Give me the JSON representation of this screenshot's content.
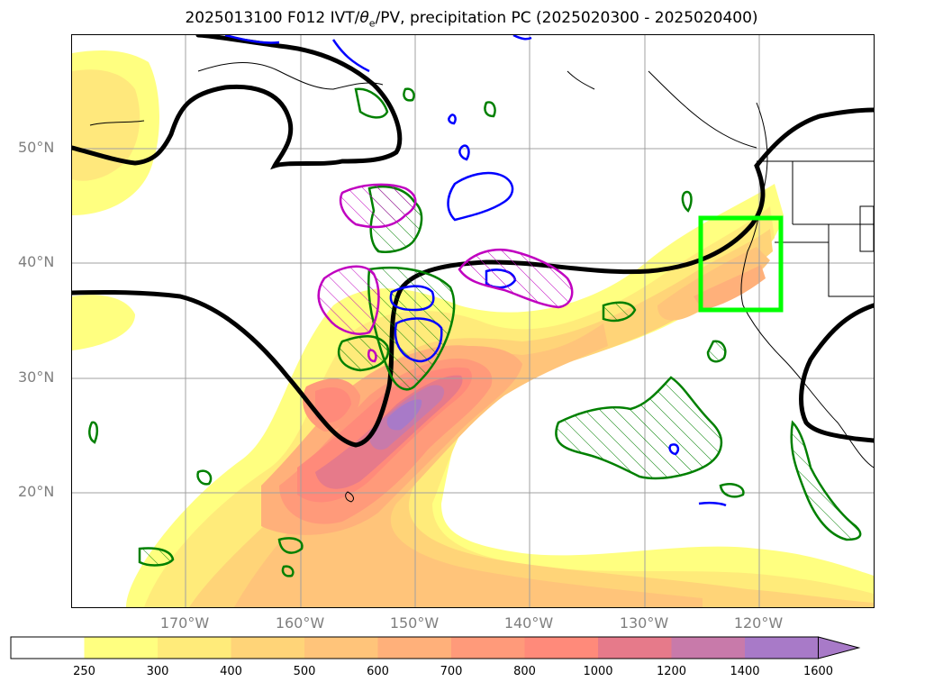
{
  "title_main": "2025013100 F012 IVT/",
  "title_theta": "θ",
  "title_sub": "e",
  "title_rest": "/PV, precipitation PC (2025020300 - 2025020400)",
  "lat_labels": [
    "50°N",
    "40°N",
    "30°N",
    "20°N"
  ],
  "lon_labels": [
    "170°W",
    "160°W",
    "150°W",
    "140°W",
    "130°W",
    "120°W"
  ],
  "colorbar": {
    "ticks": [
      "250",
      "300",
      "400",
      "500",
      "600",
      "700",
      "800",
      "1000",
      "1200",
      "1400",
      "1600"
    ],
    "colors": [
      "#ffffff",
      "#ffff80",
      "#ffeb7a",
      "#ffd478",
      "#ffc47a",
      "#ffb07a",
      "#ff9a7a",
      "#ff8a7a",
      "#e67a8a",
      "#c87aaa",
      "#a87ac8"
    ],
    "extend": "max"
  },
  "map": {
    "lon_range": [
      "180°W",
      "110°W"
    ],
    "lat_range": [
      "10°N",
      "60°N"
    ],
    "grid": true,
    "contour_colors": {
      "theta_e": "#000000",
      "pv_positive": "#008000",
      "pv_negative": "#0000ff",
      "pv_magenta": "#c000c0",
      "highlight_box": "#00ff00"
    }
  }
}
